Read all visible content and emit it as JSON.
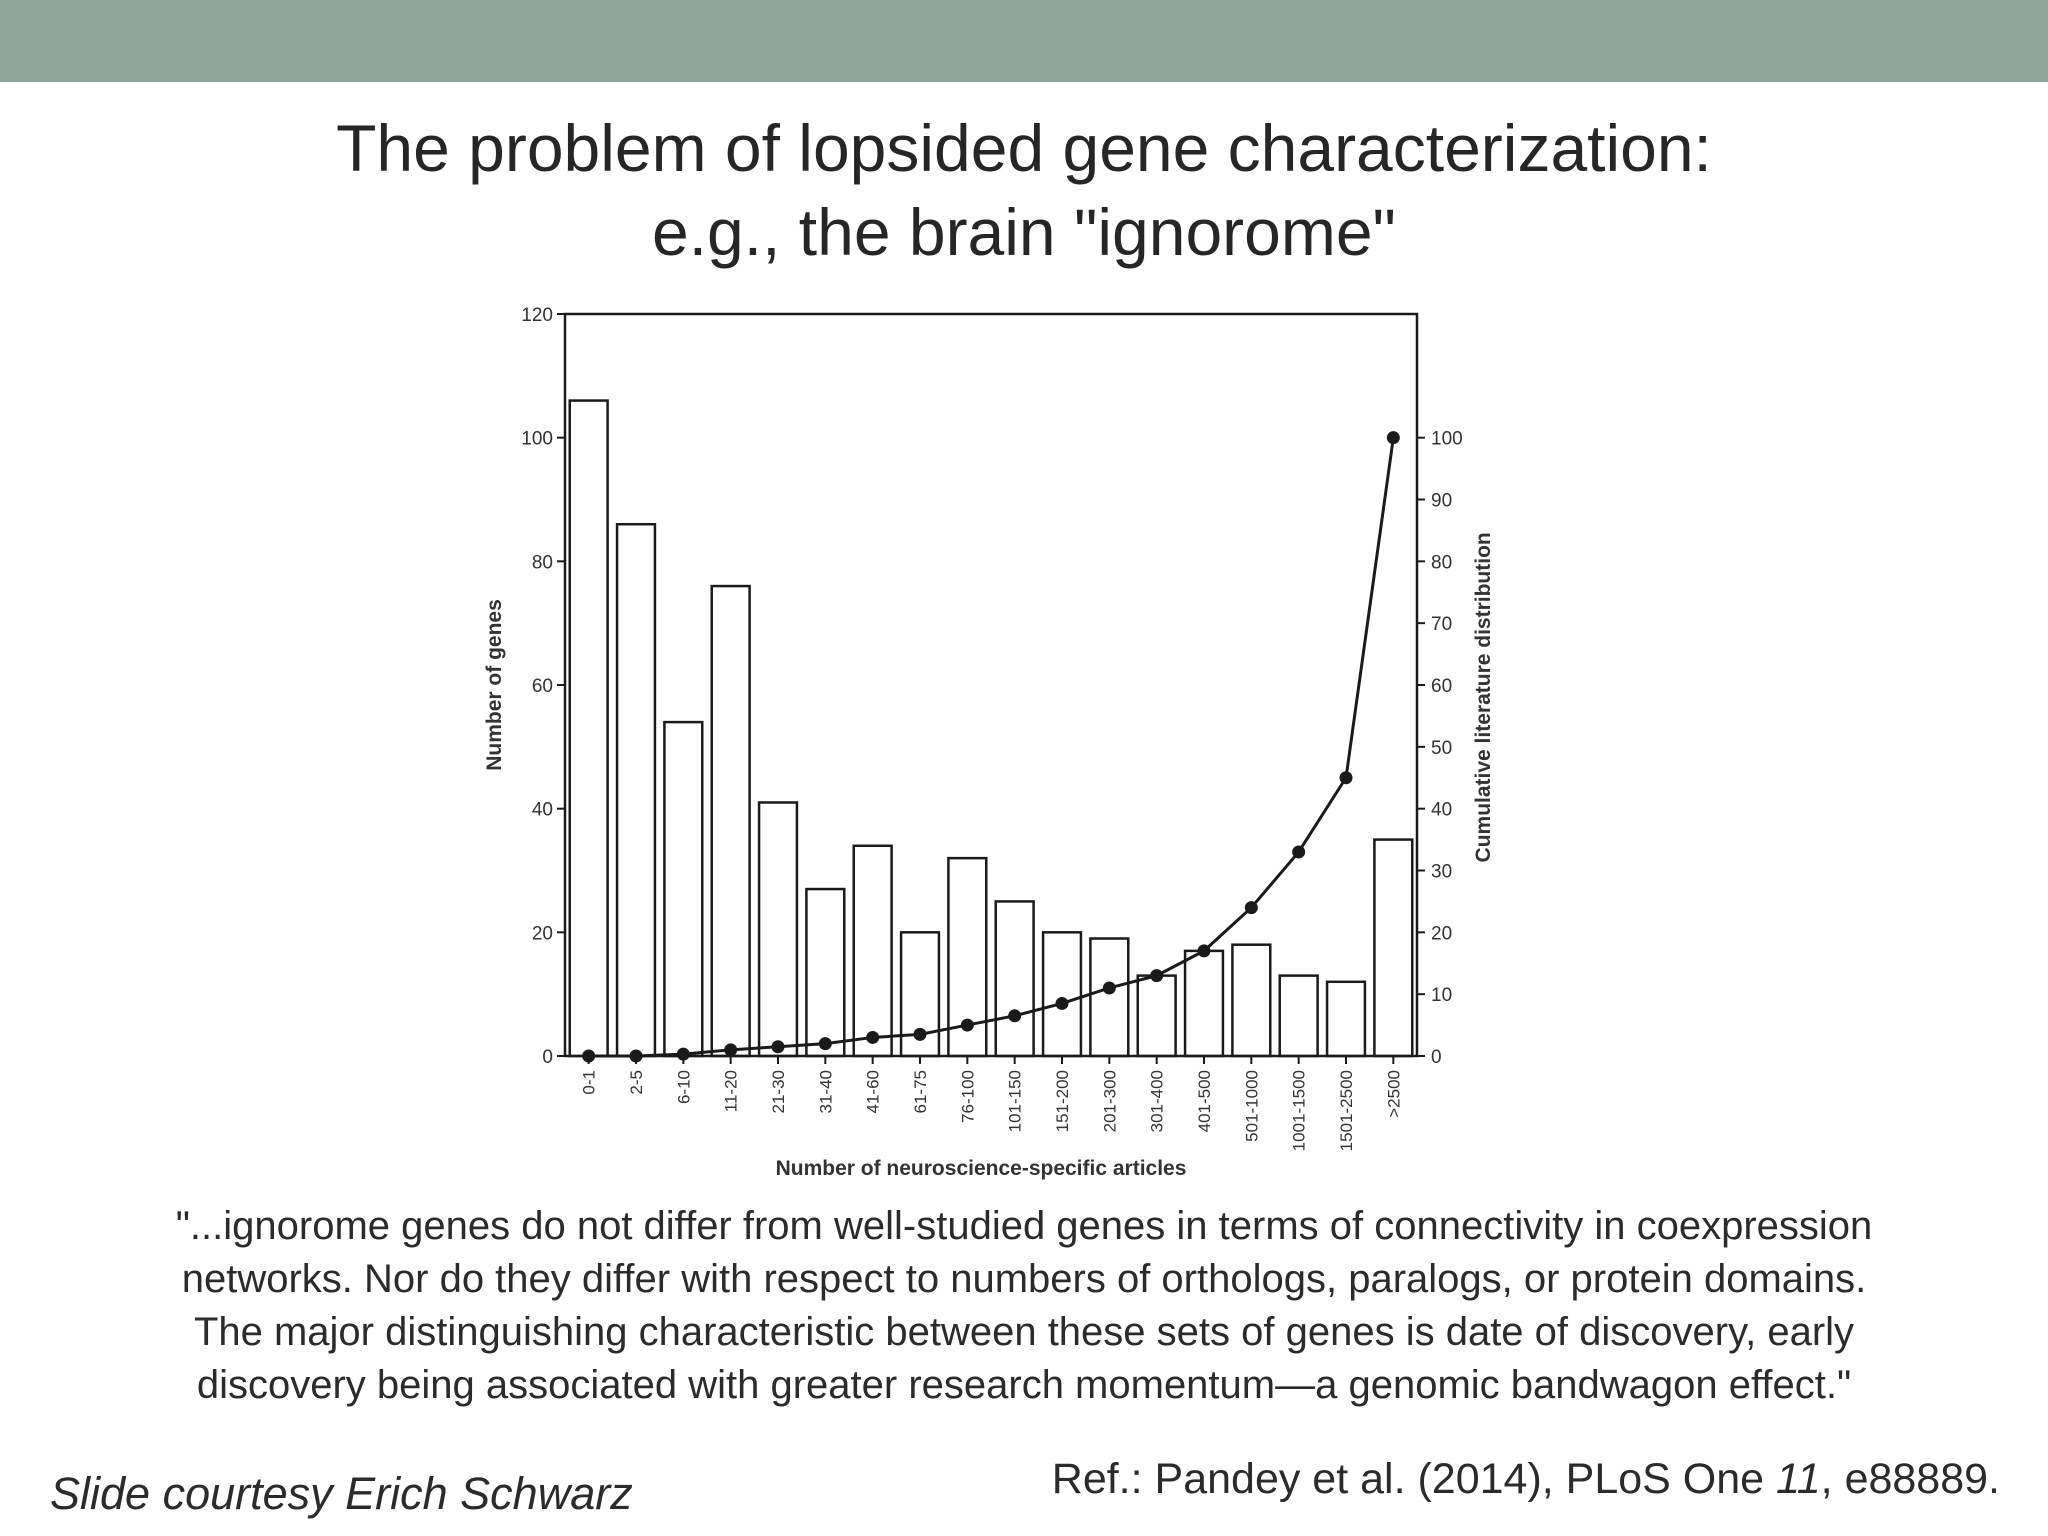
{
  "slide": {
    "title_lines": [
      "The problem of lopsided gene characterization:",
      "e.g., the brain \"ignorome\""
    ],
    "quote_lines": [
      "\"...ignorome genes do not differ from well-studied genes in terms of connectivity in coexpression",
      "networks. Nor do they differ with respect to numbers of orthologs, paralogs, or protein domains.",
      "The major distinguishing characteristic between these sets of genes is date of discovery, early",
      "discovery being associated with greater research momentum—a genomic bandwagon effect.\""
    ],
    "courtesy": "Slide courtesy Erich Schwarz",
    "reference": {
      "prefix": "Ref.: Pandey et al. (2014), PLoS One ",
      "volume": "11",
      "suffix": ", e88889."
    }
  },
  "colors": {
    "top_band": "#8fa39a",
    "text": "#2b2b2b",
    "chart_ink": "#1a1a1a"
  },
  "chart_data": {
    "type": "bar",
    "categories": [
      "0-1",
      "2-5",
      "6-10",
      "11-20",
      "21-30",
      "31-40",
      "41-60",
      "61-75",
      "76-100",
      "101-150",
      "151-200",
      "201-300",
      "301-400",
      "401-500",
      "501-1000",
      "1001-1500",
      "1501-2500",
      ">2500"
    ],
    "xlabel": "Number of neuroscience-specific articles",
    "series": [
      {
        "name": "Number of genes",
        "type": "bar",
        "axis": "left",
        "values": [
          106,
          86,
          54,
          76,
          41,
          27,
          34,
          20,
          32,
          25,
          20,
          19,
          13,
          17,
          18,
          13,
          12,
          35
        ]
      },
      {
        "name": "Cumulative literature distribution",
        "type": "line",
        "axis": "right",
        "values": [
          0,
          0,
          0.3,
          1,
          1.5,
          2,
          3,
          3.5,
          5,
          6.5,
          8.5,
          11,
          13,
          17,
          24,
          33,
          45,
          100
        ]
      }
    ],
    "ylabel": "Number of genes",
    "ylim": [
      0,
      120
    ],
    "yticks": [
      0,
      20,
      40,
      60,
      80,
      100,
      120
    ],
    "y2label": "Cumulative literature distribution",
    "y2lim": [
      0,
      120
    ],
    "y2ticks": [
      0,
      10,
      20,
      30,
      40,
      50,
      60,
      70,
      80,
      90,
      100
    ],
    "grid": false,
    "legend": "none"
  }
}
